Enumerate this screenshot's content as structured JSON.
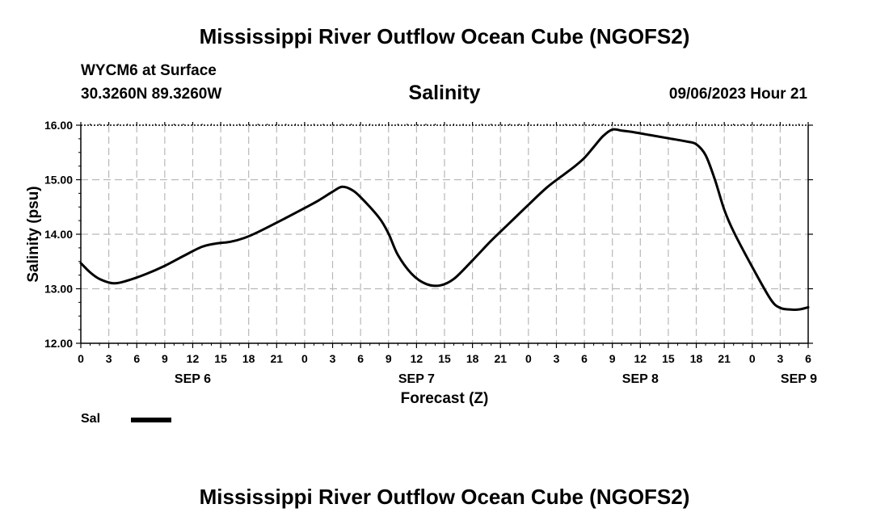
{
  "header": {
    "title": "Mississippi River Outflow Ocean Cube (NGOFS2)",
    "station": "WYCM6 at Surface",
    "coordinates": "30.3260N  89.3260W",
    "subtitle": "Salinity",
    "datetime": "09/06/2023 Hour 21"
  },
  "footer": {
    "title": "Mississippi River Outflow Ocean Cube (NGOFS2)"
  },
  "legend": {
    "label": "Sal"
  },
  "chart_data": {
    "type": "line",
    "title": "Salinity",
    "xlabel": "Forecast (Z)",
    "ylabel": "Salinity (psu)",
    "xlim": [
      0,
      78
    ],
    "ylim": [
      12.0,
      16.0
    ],
    "grid": true,
    "yticks": [
      12.0,
      13.0,
      14.0,
      15.0,
      16.0
    ],
    "ytick_labels": [
      "12.00",
      "13.00",
      "14.00",
      "15.00",
      "16.00"
    ],
    "xticks": [
      0,
      3,
      6,
      9,
      12,
      15,
      18,
      21,
      24,
      27,
      30,
      33,
      36,
      39,
      42,
      45,
      48,
      51,
      54,
      57,
      60,
      63,
      66,
      69,
      72,
      75,
      78
    ],
    "xtick_labels": [
      "0",
      "3",
      "6",
      "9",
      "12",
      "15",
      "18",
      "21",
      "0",
      "3",
      "6",
      "9",
      "12",
      "15",
      "18",
      "21",
      "0",
      "3",
      "6",
      "9",
      "12",
      "15",
      "18",
      "21",
      "0",
      "3",
      "6"
    ],
    "date_labels": [
      {
        "x": 12,
        "label": "SEP 6"
      },
      {
        "x": 36,
        "label": "SEP 7"
      },
      {
        "x": 60,
        "label": "SEP 8"
      },
      {
        "x": 77,
        "label": "SEP 9"
      }
    ],
    "series": [
      {
        "name": "Sal",
        "color": "#000000",
        "x": [
          0,
          1,
          2,
          3.5,
          5,
          7,
          9,
          11,
          13,
          14.5,
          16,
          17.5,
          19,
          22,
          24,
          25.5,
          27,
          28,
          29,
          30,
          32,
          33,
          34,
          35.5,
          37,
          38.5,
          40,
          42,
          44,
          46,
          48,
          50,
          52,
          53,
          54,
          55,
          56,
          57,
          58,
          59,
          61,
          63,
          65,
          66,
          67,
          68,
          69,
          70,
          72,
          74,
          75,
          76,
          77,
          78
        ],
        "y": [
          13.47,
          13.3,
          13.18,
          13.1,
          13.15,
          13.27,
          13.42,
          13.6,
          13.77,
          13.83,
          13.86,
          13.93,
          14.04,
          14.3,
          14.48,
          14.62,
          14.78,
          14.87,
          14.82,
          14.68,
          14.3,
          14.01,
          13.62,
          13.27,
          13.09,
          13.06,
          13.18,
          13.52,
          13.88,
          14.21,
          14.54,
          14.86,
          15.12,
          15.25,
          15.4,
          15.6,
          15.8,
          15.92,
          15.9,
          15.88,
          15.82,
          15.76,
          15.7,
          15.65,
          15.45,
          15.0,
          14.45,
          14.05,
          13.4,
          12.8,
          12.65,
          12.62,
          12.62,
          12.66
        ]
      }
    ]
  }
}
